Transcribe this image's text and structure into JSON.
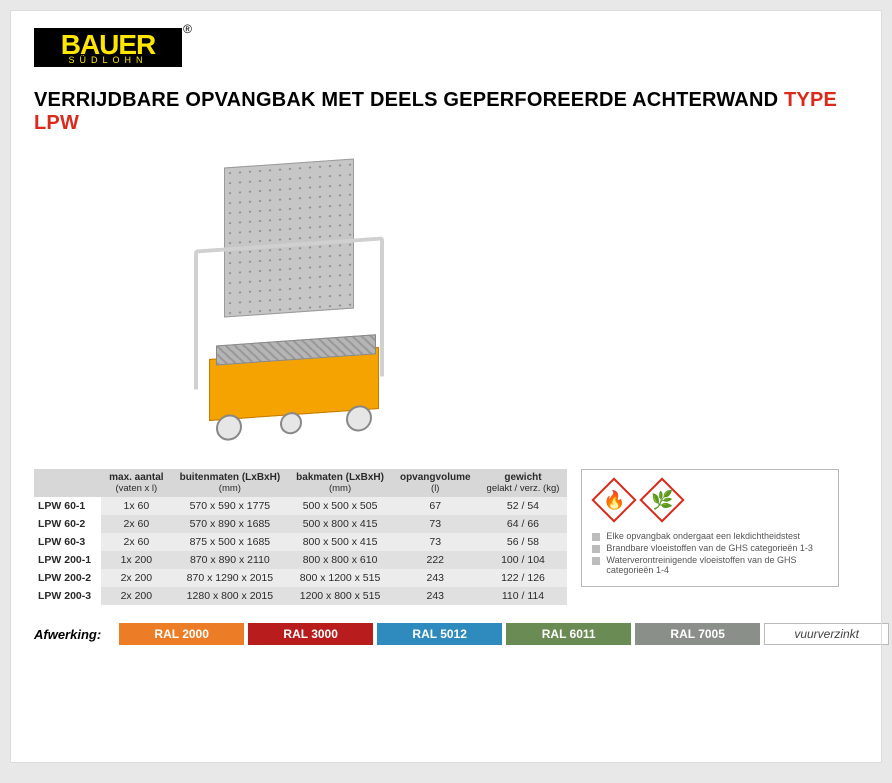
{
  "logo": {
    "main": "BAUER",
    "sub": "SÜDLOHN",
    "reg": "®"
  },
  "title": {
    "prefix": "VERRIJDBARE OPVANGBAK MET DEELS GEPERFOREERDE ACHTERWAND ",
    "type": "TYPE LPW"
  },
  "table": {
    "headers": [
      {
        "top": "max. aantal",
        "sub": "(vaten x l)"
      },
      {
        "top": "buitenmaten (LxBxH)",
        "sub": "(mm)"
      },
      {
        "top": "bakmaten (LxBxH)",
        "sub": "(mm)"
      },
      {
        "top": "opvangvolume",
        "sub": "(l)"
      },
      {
        "top": "gewicht",
        "sub": "gelakt / verz. (kg)"
      }
    ],
    "rows": [
      {
        "name": "LPW 60-1",
        "max": "1x 60",
        "outer": "570 x  590 x 1775",
        "tray": "500 x  500 x 505",
        "vol": "67",
        "wt": "52 / 54"
      },
      {
        "name": "LPW 60-2",
        "max": "2x 60",
        "outer": "570 x  890 x 1685",
        "tray": "500 x  800 x 415",
        "vol": "73",
        "wt": "64 / 66"
      },
      {
        "name": "LPW 60-3",
        "max": "2x 60",
        "outer": "875 x  500 x 1685",
        "tray": "800 x  500 x 415",
        "vol": "73",
        "wt": "56 / 58"
      },
      {
        "name": "LPW 200-1",
        "max": "1x 200",
        "outer": "870 x  890 x 2110",
        "tray": "800 x  800 x 610",
        "vol": "222",
        "wt": "100 / 104"
      },
      {
        "name": "LPW 200-2",
        "max": "2x 200",
        "outer": "870 x 1290 x 2015",
        "tray": "800 x 1200 x 515",
        "vol": "243",
        "wt": "122 / 126"
      },
      {
        "name": "LPW 200-3",
        "max": "2x 200",
        "outer": "1280 x  800 x 2015",
        "tray": "1200 x  800 x 515",
        "vol": "243",
        "wt": "110 / 114"
      }
    ]
  },
  "hazard_notes": [
    "Elke opvangbak ondergaat een lekdichtheidstest",
    "Brandbare vloeistoffen van de GHS categorieën 1-3",
    "Waterverontreinigende vloeistoffen van de GHS categorieën 1-4"
  ],
  "hazard_icons": [
    {
      "name": "flame-icon",
      "glyph": "🔥",
      "stroke": "#d92a1c"
    },
    {
      "name": "environment-icon",
      "glyph": "🌿",
      "stroke": "#d92a1c"
    }
  ],
  "finishing": {
    "label": "Afwerking:",
    "chips": [
      {
        "label": "RAL 2000",
        "bg": "#ec7c26"
      },
      {
        "label": "RAL 3000",
        "bg": "#b81c1c"
      },
      {
        "label": "RAL 5012",
        "bg": "#2f8bbd"
      },
      {
        "label": "RAL 6011",
        "bg": "#6b8b54"
      },
      {
        "label": "RAL 7005",
        "bg": "#8a8f8a"
      }
    ],
    "zinc": "vuurverzinkt"
  },
  "colors": {
    "accent_red": "#d92a1c",
    "brand_yellow": "#ffe600",
    "table_row_a": "#ececec",
    "table_row_b": "#e0e0e0",
    "table_head": "#d7d7d7",
    "border": "#b9b9b9"
  }
}
